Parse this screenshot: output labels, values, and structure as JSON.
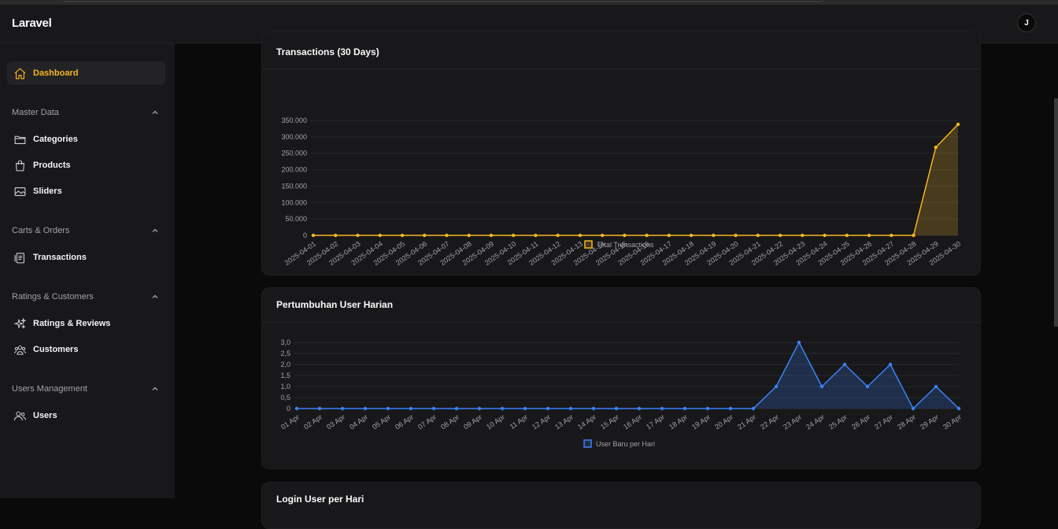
{
  "app": {
    "brand": "Laravel",
    "avatar_initial": "J"
  },
  "sidebar": {
    "dashboard": "Dashboard",
    "groups": {
      "master": {
        "label": "Master Data",
        "items": [
          "Categories",
          "Products",
          "Sliders"
        ]
      },
      "carts": {
        "label": "Carts & Orders",
        "items": [
          "Transactions"
        ]
      },
      "ratings": {
        "label": "Ratings & Customers",
        "items": [
          "Ratings & Reviews",
          "Customers"
        ]
      },
      "users": {
        "label": "Users Management",
        "items": [
          "Users"
        ]
      }
    }
  },
  "colors": {
    "accent": "#f5b521",
    "blue": "#3b82f6",
    "bg": "#0a0a0a",
    "card": "#18181b"
  },
  "transactions_card": {
    "title": "Transactions (30 Days)"
  },
  "users_card": {
    "title": "Pertumbuhan User Harian"
  },
  "login_card": {
    "title": "Login User per Hari"
  },
  "chart_data": [
    {
      "type": "area",
      "title": "Transactions (30 Days)",
      "legend": "Total Transactions",
      "ylim": [
        0,
        350000
      ],
      "yticks": [
        "0",
        "50.000",
        "100.000",
        "150.000",
        "200.000",
        "250.000",
        "300.000",
        "350.000"
      ],
      "categories": [
        "2025-04-01",
        "2025-04-02",
        "2025-04-03",
        "2025-04-04",
        "2025-04-05",
        "2025-04-06",
        "2025-04-07",
        "2025-04-08",
        "2025-04-09",
        "2025-04-10",
        "2025-04-11",
        "2025-04-12",
        "2025-04-13",
        "2025-04-14",
        "2025-04-15",
        "2025-04-16",
        "2025-04-17",
        "2025-04-18",
        "2025-04-19",
        "2025-04-20",
        "2025-04-21",
        "2025-04-22",
        "2025-04-23",
        "2025-04-24",
        "2025-04-25",
        "2025-04-26",
        "2025-04-27",
        "2025-04-28",
        "2025-04-29",
        "2025-04-30"
      ],
      "values": [
        0,
        0,
        0,
        0,
        0,
        0,
        0,
        0,
        0,
        0,
        0,
        0,
        0,
        0,
        0,
        0,
        0,
        0,
        0,
        0,
        0,
        0,
        0,
        0,
        0,
        0,
        0,
        0,
        268000,
        338000
      ],
      "color": "#f5b521"
    },
    {
      "type": "area",
      "title": "Pertumbuhan User Harian",
      "legend": "User Baru per Hari",
      "ylim": [
        0,
        3
      ],
      "yticks": [
        "0",
        "0,5",
        "1,0",
        "1,5",
        "2,0",
        "2,5",
        "3,0"
      ],
      "categories": [
        "01 Apr",
        "02 Apr",
        "03 Apr",
        "04 Apr",
        "05 Apr",
        "06 Apr",
        "07 Apr",
        "08 Apr",
        "09 Apr",
        "10 Apr",
        "11 Apr",
        "12 Apr",
        "13 Apr",
        "14 Apr",
        "15 Apr",
        "16 Apr",
        "17 Apr",
        "18 Apr",
        "19 Apr",
        "20 Apr",
        "21 Apr",
        "22 Apr",
        "23 Apr",
        "24 Apr",
        "25 Apr",
        "26 Apr",
        "27 Apr",
        "28 Apr",
        "29 Apr",
        "30 Apr"
      ],
      "values": [
        0,
        0,
        0,
        0,
        0,
        0,
        0,
        0,
        0,
        0,
        0,
        0,
        0,
        0,
        0,
        0,
        0,
        0,
        0,
        0,
        0,
        1,
        3,
        1,
        2,
        1,
        2,
        0,
        1,
        0
      ],
      "color": "#3b82f6"
    }
  ]
}
